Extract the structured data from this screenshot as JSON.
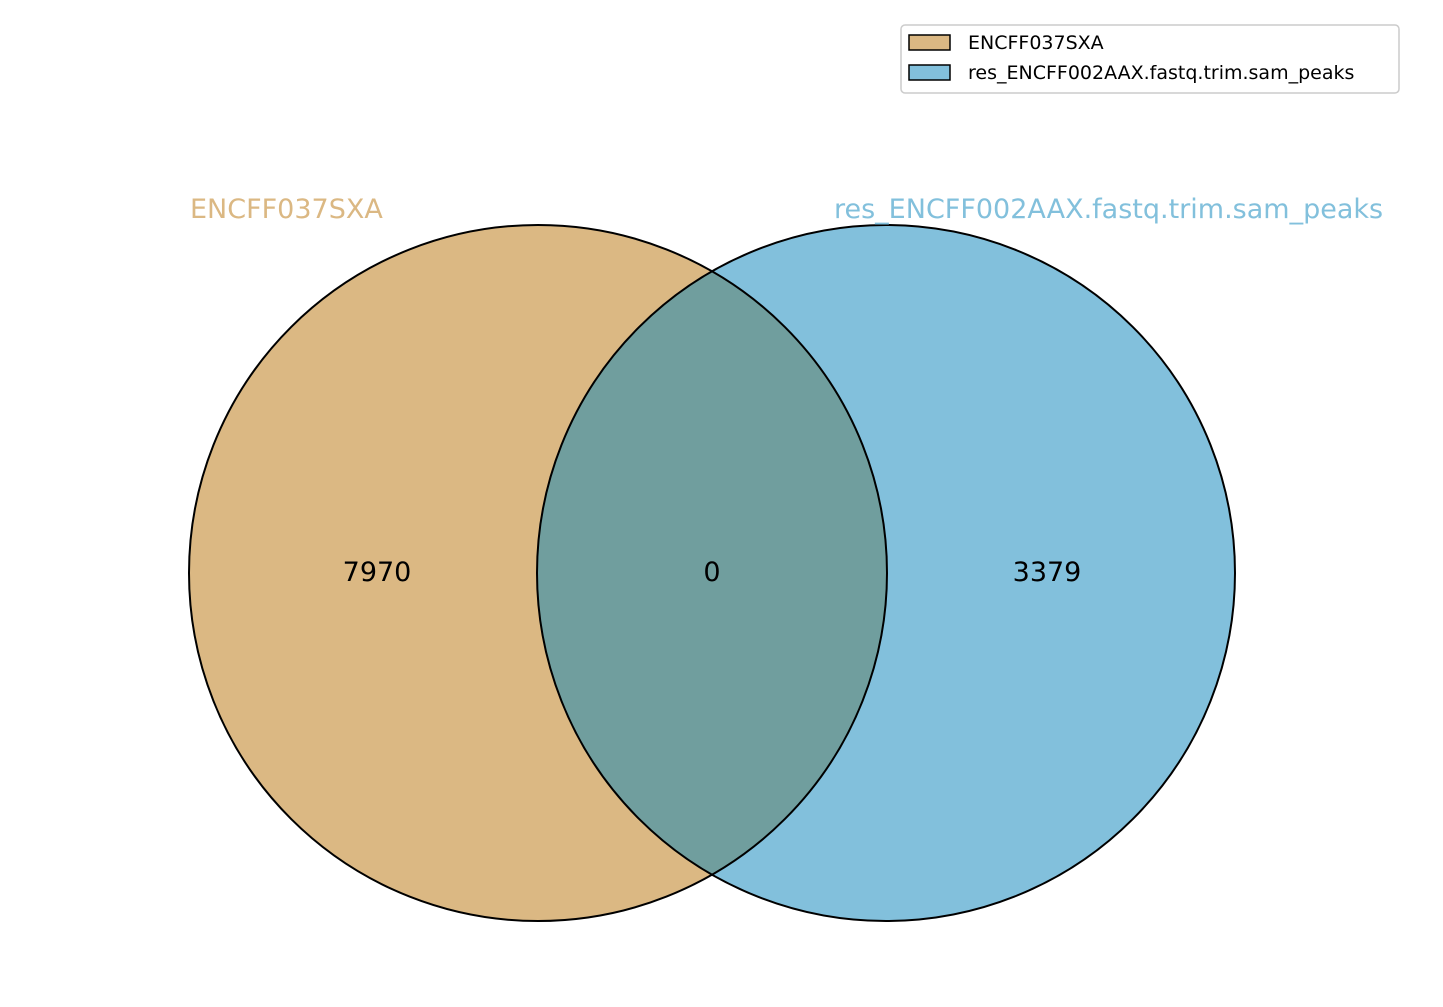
{
  "sets": [
    {
      "name": "ENCFF037SXA",
      "color": "#dbb883"
    },
    {
      "name": "res_ENCFF002AAX.fastq.trim.sam_peaks",
      "color": "#82c0dc"
    }
  ],
  "overlap_color": "#709e9e",
  "regions": {
    "only_a": "7970",
    "both": "0",
    "only_b": "3379"
  },
  "legend": {
    "placement": "top-right",
    "entries": [
      {
        "label": "ENCFF037SXA",
        "color": "#dbb883"
      },
      {
        "label": "res_ENCFF002AAX.fastq.trim.sam_peaks",
        "color": "#82c0dc"
      }
    ]
  }
}
